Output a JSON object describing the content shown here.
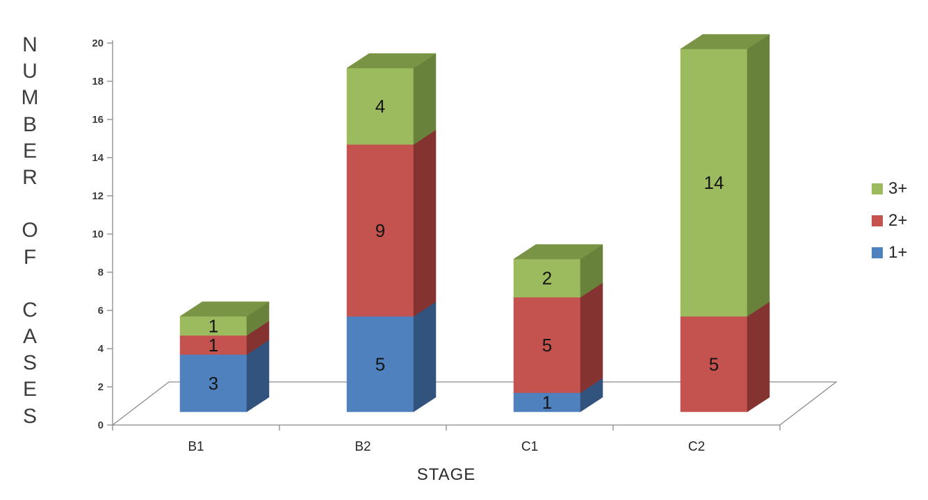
{
  "chart_data": {
    "type": "bar",
    "variant": "3d-stacked-column",
    "title": "",
    "xlabel": "STAGE",
    "ylabel": "NUMBER OF CASES",
    "categories": [
      "B1",
      "B2",
      "C1",
      "C2"
    ],
    "series": [
      {
        "name": "1+",
        "color": "#4E81BE",
        "side_color": "#32537D",
        "top_color": "#6D96C9",
        "values": [
          3,
          5,
          1,
          0
        ]
      },
      {
        "name": "2+",
        "color": "#C4534F",
        "side_color": "#853330",
        "top_color": "#CE6B68",
        "values": [
          1,
          9,
          5,
          5
        ]
      },
      {
        "name": "3+",
        "color": "#9CBB5F",
        "side_color": "#69823B",
        "top_color": "#7A9445",
        "values": [
          1,
          4,
          2,
          14
        ]
      }
    ],
    "totals": [
      5,
      18,
      8,
      19
    ],
    "ylim": [
      0,
      20
    ],
    "ytick_step": 2,
    "yticks": [
      0,
      2,
      4,
      6,
      8,
      10,
      12,
      14,
      16,
      18,
      20
    ],
    "grid": false,
    "legend_position": "right",
    "legend_order": [
      "3+",
      "2+",
      "1+"
    ],
    "axis_color": "#8A8A8A",
    "tick_label_color": "#3d3d3d",
    "value_label_color": "#141414",
    "category_label_color": "#262626"
  }
}
